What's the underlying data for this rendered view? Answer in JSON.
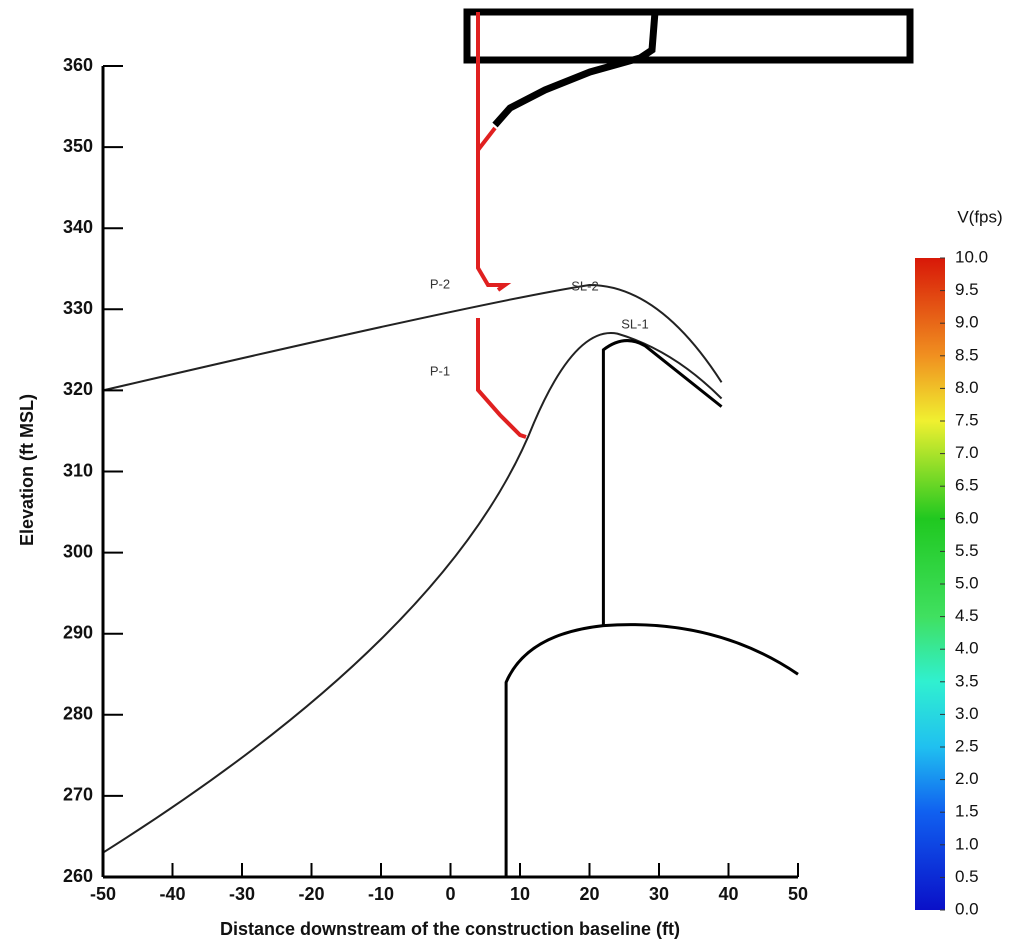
{
  "chart_data": {
    "type": "contour",
    "x_label": "Distance downstream of the construction baseline (ft)",
    "y_label": "Elevation (ft MSL)",
    "xlim": [
      -50,
      50
    ],
    "ylim": [
      260,
      360
    ],
    "xticks": [
      -50,
      -40,
      -30,
      -20,
      -10,
      0,
      10,
      20,
      30,
      40,
      50
    ],
    "yticks": [
      260,
      270,
      280,
      290,
      300,
      310,
      320,
      330,
      340,
      350,
      360
    ],
    "colorbar": {
      "title": "V(fps)",
      "lim": [
        0,
        10
      ],
      "ticks": [
        {
          "value": 0,
          "label": "0.0"
        },
        {
          "value": 0.5,
          "label": "0.5"
        },
        {
          "value": 1,
          "label": "1.0"
        },
        {
          "value": 1.5,
          "label": "1.5"
        },
        {
          "value": 2,
          "label": "2.0"
        },
        {
          "value": 2.5,
          "label": "2.5"
        },
        {
          "value": 3,
          "label": "3.0"
        },
        {
          "value": 3.5,
          "label": "3.5"
        },
        {
          "value": 4,
          "label": "4.0"
        },
        {
          "value": 4.5,
          "label": "4.5"
        },
        {
          "value": 5,
          "label": "5.0"
        },
        {
          "value": 5.5,
          "label": "5.5"
        },
        {
          "value": 6,
          "label": "6.0"
        },
        {
          "value": 6.5,
          "label": "6.5"
        },
        {
          "value": 7,
          "label": "7.0"
        },
        {
          "value": 7.5,
          "label": "7.5"
        },
        {
          "value": 8,
          "label": "8.0"
        },
        {
          "value": 8.5,
          "label": "8.5"
        },
        {
          "value": 9,
          "label": "9.0"
        },
        {
          "value": 9.5,
          "label": "9.5"
        },
        {
          "value": 10,
          "label": "10.0"
        }
      ]
    },
    "annotations": [
      "P-2",
      "P-1",
      "SL-2",
      "SL-1"
    ]
  }
}
